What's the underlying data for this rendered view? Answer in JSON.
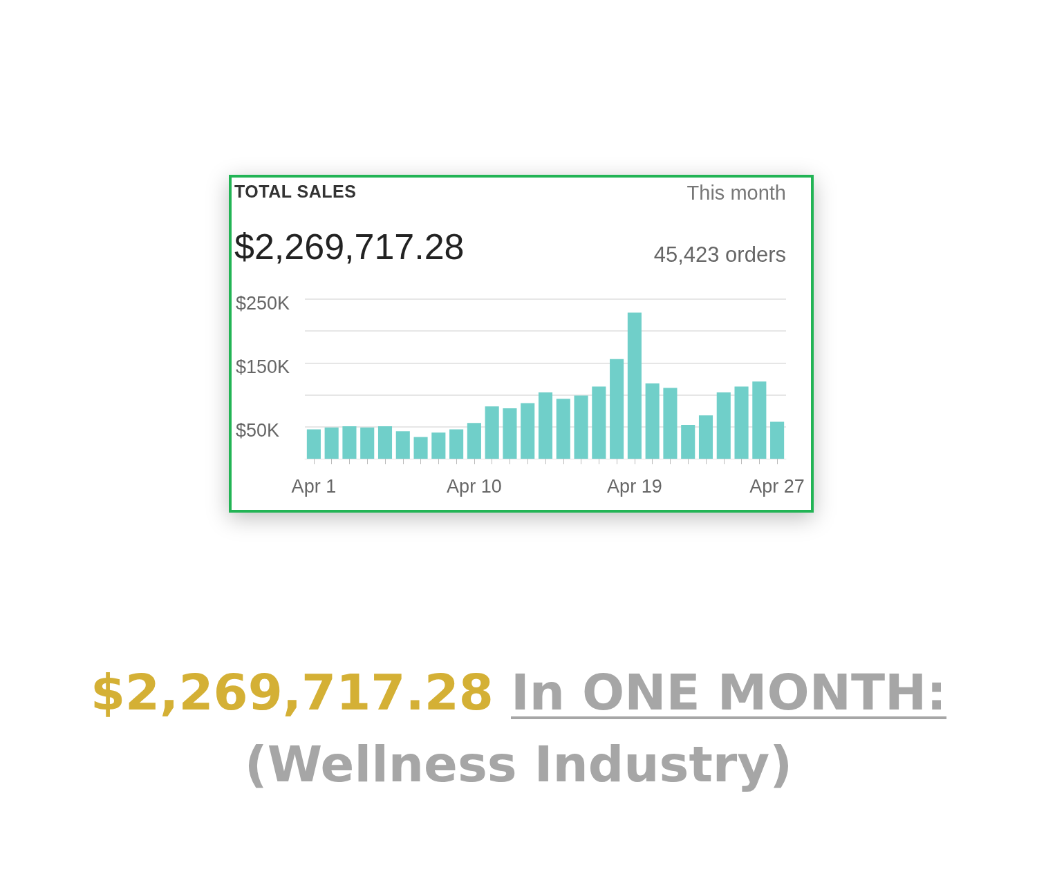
{
  "chart_data": {
    "type": "bar",
    "title": "TOTAL SALES",
    "subtitle": "This month",
    "annotations": [
      "$2,269,717.28",
      "45,423 orders",
      "$2,269,717.28",
      "In ONE MONTH:",
      "(Wellness Industry)"
    ],
    "categories": [
      "Apr 1",
      null,
      null,
      null,
      null,
      null,
      null,
      null,
      null,
      "Apr 10",
      null,
      null,
      null,
      null,
      null,
      null,
      null,
      null,
      "Apr 19",
      null,
      null,
      null,
      null,
      null,
      null,
      null,
      "Apr 27"
    ],
    "values": [
      46000,
      49000,
      51000,
      49000,
      51000,
      43000,
      34000,
      41000,
      46000,
      56000,
      82000,
      79000,
      87000,
      104000,
      94000,
      99000,
      113000,
      156000,
      229000,
      118000,
      111000,
      53000,
      68000,
      104000,
      113000,
      121000,
      58000
    ],
    "color": "#70cfc9",
    "ylim": [
      0,
      250000
    ],
    "yticks": [
      {
        "value": 50000,
        "label": "$50K"
      },
      {
        "value": 100000,
        "label": null
      },
      {
        "value": 150000,
        "label": "$150K"
      },
      {
        "value": 200000,
        "label": null
      },
      {
        "value": 250000,
        "label": "$250K"
      }
    ],
    "grid": "y"
  }
}
